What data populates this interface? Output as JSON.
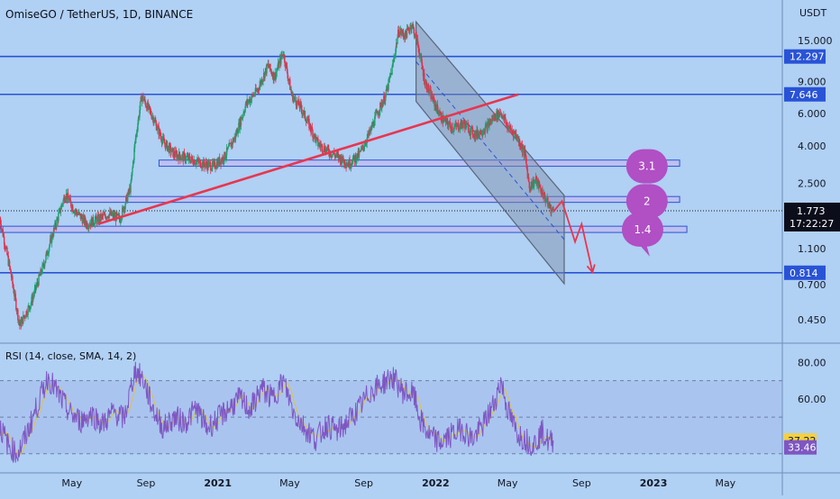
{
  "chart_data": {
    "type": "candlestick",
    "symbol_title": "OmiseGO / TetherUS, 1D, BINANCE",
    "currency_label": "USDT",
    "y_scale": "log",
    "y_ticks": [
      "15.000",
      "9.000",
      "6.000",
      "4.000",
      "2.500",
      "1.100",
      "0.700",
      "0.450"
    ],
    "tick_values": [
      15,
      9,
      6,
      4,
      2.5,
      1.1,
      0.7,
      0.45
    ],
    "x_ticks": [
      "May",
      "Sep",
      "2021",
      "May",
      "Sep",
      "2022",
      "May",
      "Sep",
      "2023",
      "May"
    ],
    "horizontal_levels": [
      {
        "label": "12.297",
        "value": 12.297
      },
      {
        "label": "7.646",
        "value": 7.646
      },
      {
        "label": "0.814",
        "value": 0.814
      }
    ],
    "current_price": {
      "label": "1.773",
      "value": 1.773
    },
    "countdown": "17:22:27",
    "price_path": [
      [
        2020.0,
        1.6
      ],
      [
        2020.05,
        0.8
      ],
      [
        2020.09,
        0.42
      ],
      [
        2020.14,
        0.55
      ],
      [
        2020.2,
        0.9
      ],
      [
        2020.24,
        1.3
      ],
      [
        2020.3,
        2.2
      ],
      [
        2020.34,
        1.8
      ],
      [
        2020.4,
        1.5
      ],
      [
        2020.45,
        1.6
      ],
      [
        2020.5,
        1.7
      ],
      [
        2020.55,
        1.6
      ],
      [
        2020.6,
        2.4
      ],
      [
        2020.62,
        4.2
      ],
      [
        2020.65,
        7.5
      ],
      [
        2020.7,
        5.8
      ],
      [
        2020.75,
        4.2
      ],
      [
        2020.8,
        3.6
      ],
      [
        2020.87,
        3.4
      ],
      [
        2020.93,
        3.2
      ],
      [
        2020.98,
        3.1
      ],
      [
        2021.03,
        3.5
      ],
      [
        2021.08,
        4.5
      ],
      [
        2021.13,
        6.8
      ],
      [
        2021.18,
        8.0
      ],
      [
        2021.23,
        11.0
      ],
      [
        2021.26,
        9.5
      ],
      [
        2021.3,
        13.0
      ],
      [
        2021.34,
        7.5
      ],
      [
        2021.38,
        6.5
      ],
      [
        2021.42,
        5.2
      ],
      [
        2021.46,
        4.1
      ],
      [
        2021.5,
        3.8
      ],
      [
        2021.55,
        3.5
      ],
      [
        2021.6,
        3.2
      ],
      [
        2021.65,
        3.6
      ],
      [
        2021.7,
        4.8
      ],
      [
        2021.73,
        6.0
      ],
      [
        2021.77,
        7.5
      ],
      [
        2021.8,
        10.5
      ],
      [
        2021.83,
        17.0
      ],
      [
        2021.86,
        16.0
      ],
      [
        2021.89,
        18.5
      ],
      [
        2021.92,
        14.0
      ],
      [
        2021.95,
        9.0
      ],
      [
        2021.99,
        7.0
      ],
      [
        2022.03,
        5.6
      ],
      [
        2022.08,
        5.0
      ],
      [
        2022.13,
        5.3
      ],
      [
        2022.18,
        4.6
      ],
      [
        2022.23,
        5.0
      ],
      [
        2022.27,
        5.8
      ],
      [
        2022.3,
        6.1
      ],
      [
        2022.33,
        5.1
      ],
      [
        2022.37,
        4.6
      ],
      [
        2022.41,
        3.6
      ],
      [
        2022.43,
        2.4
      ],
      [
        2022.46,
        2.6
      ],
      [
        2022.5,
        2.1
      ],
      [
        2022.53,
        1.8
      ],
      [
        2022.54,
        1.773
      ]
    ],
    "rsi": {
      "label": "RSI (14, close, SMA, 14, 2)",
      "y_ticks": [
        "80.00",
        "60.00"
      ],
      "tick_values": [
        80,
        60
      ],
      "upper_band": 70,
      "lower_band": 30,
      "mid_level": 50,
      "value_label": "37.22",
      "value": 37.22,
      "sma_label": "33.46",
      "sma": 33.46,
      "path": [
        [
          2020.0,
          45
        ],
        [
          2020.04,
          34
        ],
        [
          2020.08,
          30
        ],
        [
          2020.12,
          40
        ],
        [
          2020.17,
          56
        ],
        [
          2020.22,
          72
        ],
        [
          2020.27,
          62
        ],
        [
          2020.32,
          52
        ],
        [
          2020.37,
          48
        ],
        [
          2020.42,
          52
        ],
        [
          2020.47,
          46
        ],
        [
          2020.52,
          53
        ],
        [
          2020.57,
          49
        ],
        [
          2020.62,
          76
        ],
        [
          2020.66,
          70
        ],
        [
          2020.7,
          55
        ],
        [
          2020.75,
          44
        ],
        [
          2020.8,
          50
        ],
        [
          2020.85,
          47
        ],
        [
          2020.9,
          55
        ],
        [
          2020.95,
          44
        ],
        [
          2021.0,
          49
        ],
        [
          2021.05,
          55
        ],
        [
          2021.1,
          60
        ],
        [
          2021.15,
          54
        ],
        [
          2021.2,
          66
        ],
        [
          2021.25,
          60
        ],
        [
          2021.3,
          70
        ],
        [
          2021.35,
          52
        ],
        [
          2021.4,
          44
        ],
        [
          2021.45,
          38
        ],
        [
          2021.5,
          46
        ],
        [
          2021.55,
          42
        ],
        [
          2021.6,
          48
        ],
        [
          2021.65,
          55
        ],
        [
          2021.7,
          64
        ],
        [
          2021.75,
          68
        ],
        [
          2021.8,
          72
        ],
        [
          2021.85,
          64
        ],
        [
          2021.9,
          62
        ],
        [
          2021.93,
          48
        ],
        [
          2021.97,
          40
        ],
        [
          2022.02,
          36
        ],
        [
          2022.07,
          40
        ],
        [
          2022.12,
          44
        ],
        [
          2022.17,
          38
        ],
        [
          2022.22,
          46
        ],
        [
          2022.27,
          58
        ],
        [
          2022.3,
          70
        ],
        [
          2022.33,
          54
        ],
        [
          2022.37,
          42
        ],
        [
          2022.41,
          38
        ],
        [
          2022.45,
          35
        ],
        [
          2022.49,
          42
        ],
        [
          2022.52,
          36
        ],
        [
          2022.54,
          37.22
        ]
      ]
    },
    "trendline": {
      "points": [
        [
          2020.45,
          1.5
        ],
        [
          2022.38,
          7.646
        ]
      ]
    },
    "channel": {
      "upper": [
        [
          2021.91,
          19.0
        ],
        [
          2022.59,
          2.15
        ]
      ],
      "lower": [
        [
          2021.91,
          7.0
        ],
        [
          2022.59,
          0.71
        ]
      ]
    },
    "zones": [
      {
        "low": 3.1,
        "high": 3.35,
        "x_start": 2020.73
      },
      {
        "low": 1.97,
        "high": 2.12,
        "x_start": 2020.3
      },
      {
        "low": 1.35,
        "high": 1.46,
        "x_start": 2020.0
      }
    ],
    "projection": [
      [
        2022.54,
        1.75
      ],
      [
        2022.58,
        2.0
      ],
      [
        2022.64,
        1.2
      ],
      [
        2022.67,
        1.5
      ],
      [
        2022.72,
        0.82
      ]
    ],
    "labels": [
      "3.1",
      "2",
      "1.4"
    ],
    "label_values": [
      3.1,
      2,
      1.4
    ]
  }
}
